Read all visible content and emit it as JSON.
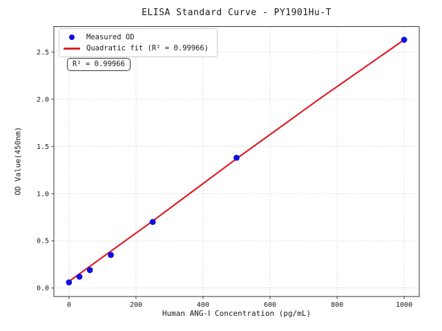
{
  "figure": {
    "title": "ELISA Standard Curve - PY1901Hu-T"
  },
  "legend": {
    "measured_label": "Measured OD",
    "fit_label": "Quadratic fit (R² = 0.99966)"
  },
  "annotation": {
    "r_squared_text": "R² = 0.99966"
  },
  "colors": {
    "measured_point": "#0f0fe0",
    "fit_line": "#dc1e28",
    "grid": "#c9c9c9",
    "frame": "#333333",
    "text": "#1a1a1a"
  },
  "chart_data": {
    "type": "scatter",
    "title": "ELISA Standard Curve - PY1901Hu-T",
    "xlabel": "Human ANG-Ⅰ Concentration (pg/mL)",
    "ylabel": "OD Value(450nm)",
    "xlim": [
      -45,
      1045
    ],
    "ylim": [
      -0.09,
      2.77
    ],
    "x_ticks": [
      0,
      200,
      400,
      600,
      800,
      1000
    ],
    "y_ticks": [
      0.0,
      0.5,
      1.0,
      1.5,
      2.0,
      2.5
    ],
    "grid": true,
    "grid_style": "dotted",
    "legend_position": "upper-left",
    "r_squared": 0.99966,
    "series": [
      {
        "name": "Measured OD",
        "type": "scatter",
        "color": "#0f0fe0",
        "x": [
          0,
          31.25,
          62.5,
          125,
          250,
          500,
          1000
        ],
        "y": [
          0.06,
          0.12,
          0.19,
          0.35,
          0.7,
          1.38,
          2.63
        ]
      },
      {
        "name": "Quadratic fit (R² = 0.99966)",
        "type": "line",
        "color": "#dc1e28",
        "x": [
          0,
          125,
          250,
          375,
          500,
          625,
          750,
          875,
          1000
        ],
        "y": [
          0.07,
          0.39,
          0.71,
          1.04,
          1.37,
          1.69,
          2.01,
          2.32,
          2.63
        ]
      }
    ]
  }
}
